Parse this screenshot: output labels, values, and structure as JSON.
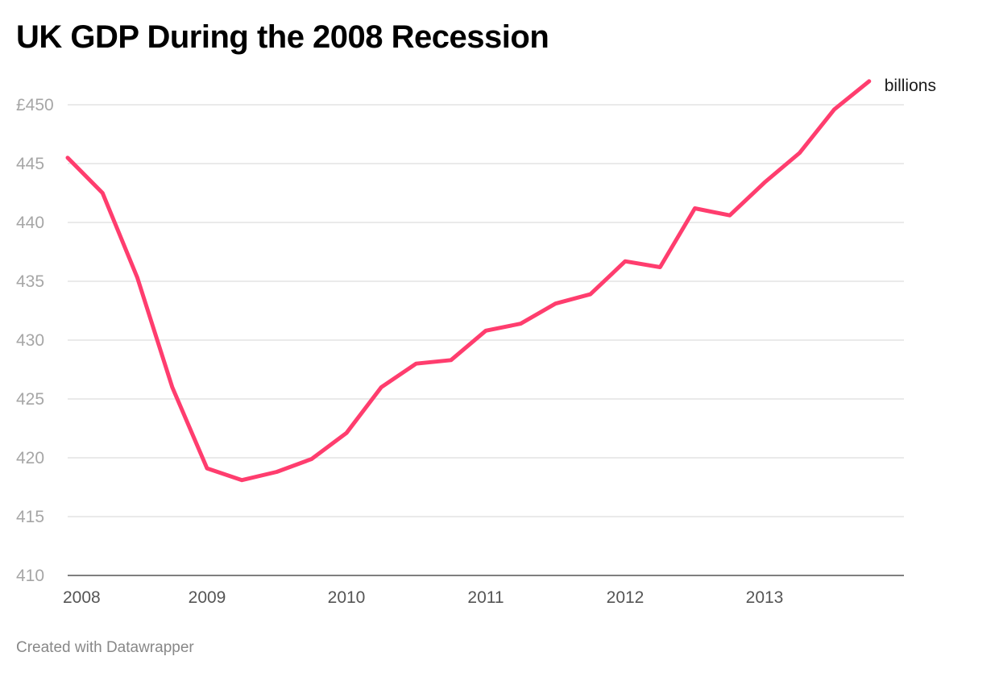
{
  "title": "UK GDP During the 2008 Recession",
  "credit": "Created with Datawrapper",
  "chart_data": {
    "type": "line",
    "title": "UK GDP During the 2008 Recession",
    "series_label": "billions",
    "y_ticks": [
      "£450",
      "445",
      "440",
      "435",
      "430",
      "425",
      "420",
      "415",
      "410"
    ],
    "y_tick_values": [
      450,
      445,
      440,
      435,
      430,
      425,
      420,
      415,
      410
    ],
    "x_ticks": [
      "2008",
      "2009",
      "2010",
      "2011",
      "2012",
      "2013"
    ],
    "x_tick_values": [
      2008,
      2009,
      2010,
      2011,
      2012,
      2013
    ],
    "xlim": [
      2008,
      2014
    ],
    "ylim": [
      410,
      450
    ],
    "grid": true,
    "line_color": "#ff3d6e",
    "series": [
      {
        "x": [
          2008.0,
          2008.25,
          2008.5,
          2008.75,
          2009.0,
          2009.25,
          2009.5,
          2009.75,
          2010.0,
          2010.25,
          2010.5,
          2010.75,
          2011.0,
          2011.25,
          2011.5,
          2011.75,
          2012.0,
          2012.25,
          2012.5,
          2012.75,
          2013.0,
          2013.25,
          2013.5,
          2013.75
        ],
        "values": [
          445.5,
          442.5,
          435.3,
          426.0,
          419.1,
          418.1,
          418.8,
          419.9,
          422.1,
          426.0,
          428.0,
          428.3,
          430.8,
          431.4,
          433.1,
          433.9,
          436.7,
          436.2,
          441.2,
          440.6,
          443.4,
          445.9,
          449.6,
          452.0
        ]
      }
    ]
  }
}
